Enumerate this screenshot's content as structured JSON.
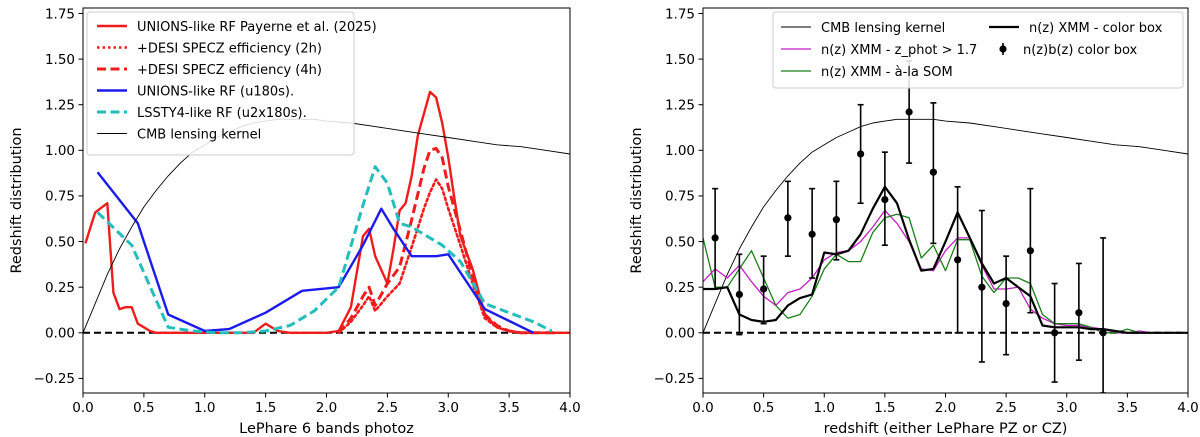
{
  "chart_data": [
    {
      "type": "line",
      "xlabel": "LePhare 6 bands photoz",
      "ylabel": "Redshift distribution",
      "xlim": [
        0.0,
        4.0
      ],
      "ylim": [
        -0.33,
        1.78
      ],
      "xticks": [
        0.0,
        0.5,
        1.0,
        1.5,
        2.0,
        2.5,
        3.0,
        3.5,
        4.0
      ],
      "xtick_labels": [
        "0.0",
        "0.5",
        "1.0",
        "1.5",
        "2.0",
        "2.5",
        "3.0",
        "3.5",
        "4.0"
      ],
      "yticks": [
        -0.25,
        0.0,
        0.25,
        0.5,
        0.75,
        1.0,
        1.25,
        1.5,
        1.75
      ],
      "ytick_labels": [
        "−0.25",
        "0.00",
        "0.25",
        "0.50",
        "0.75",
        "1.00",
        "1.25",
        "1.50",
        "1.75"
      ],
      "grid": false,
      "legend_position": "top-left",
      "zero_line": {
        "y": 0.0,
        "color": "#000000",
        "style": "dashed"
      },
      "series": [
        {
          "name": "UNIONS-like RF Payerne et al. (2025)",
          "color": "#ee1c1c",
          "style": "solid",
          "width": 2.4,
          "x": [
            0.02,
            0.1,
            0.2,
            0.25,
            0.3,
            0.35,
            0.4,
            0.45,
            0.5,
            0.55,
            0.6,
            0.7,
            0.8,
            0.9,
            1.0,
            1.1,
            1.2,
            1.3,
            1.4,
            1.5,
            1.6,
            1.7,
            1.8,
            1.9,
            2.0,
            2.1,
            2.2,
            2.3,
            2.35,
            2.4,
            2.5,
            2.55,
            2.6,
            2.65,
            2.7,
            2.75,
            2.8,
            2.85,
            2.9,
            2.95,
            3.0,
            3.05,
            3.1,
            3.2,
            3.3,
            3.4,
            3.5,
            3.6,
            3.7,
            3.8,
            3.9,
            4.0
          ],
          "y": [
            0.49,
            0.66,
            0.71,
            0.22,
            0.13,
            0.14,
            0.14,
            0.05,
            0.03,
            0.01,
            0.0,
            0.0,
            0.0,
            0.0,
            0.0,
            0.0,
            0.0,
            0.0,
            0.0,
            0.05,
            0.01,
            0.0,
            0.0,
            0.0,
            0.0,
            0.01,
            0.14,
            0.53,
            0.57,
            0.42,
            0.27,
            0.46,
            0.67,
            0.71,
            0.86,
            1.08,
            1.2,
            1.32,
            1.29,
            1.15,
            0.96,
            0.74,
            0.53,
            0.35,
            0.1,
            0.03,
            0.01,
            0.0,
            0.0,
            0.0,
            0.0,
            0.0
          ]
        },
        {
          "name": "+DESI SPECZ efficiency (2h)",
          "color": "#ee1c1c",
          "style": "dotted",
          "width": 2.6,
          "x": [
            2.1,
            2.2,
            2.3,
            2.35,
            2.4,
            2.5,
            2.6,
            2.7,
            2.8,
            2.85,
            2.9,
            2.95,
            3.0,
            3.1,
            3.2,
            3.3,
            3.4,
            3.5,
            3.6,
            3.7,
            3.8,
            3.9
          ],
          "y": [
            0.0,
            0.06,
            0.15,
            0.2,
            0.12,
            0.2,
            0.27,
            0.47,
            0.68,
            0.77,
            0.84,
            0.79,
            0.68,
            0.48,
            0.27,
            0.08,
            0.03,
            0.01,
            0.0,
            0.0,
            0.0,
            0.0
          ]
        },
        {
          "name": "+DESI SPECZ efficiency (4h)",
          "color": "#ee1c1c",
          "style": "dashed",
          "width": 3.0,
          "x": [
            2.1,
            2.2,
            2.3,
            2.35,
            2.4,
            2.5,
            2.6,
            2.7,
            2.8,
            2.85,
            2.9,
            2.95,
            3.0,
            3.1,
            3.2,
            3.3,
            3.4,
            3.5,
            3.6,
            3.7,
            3.8,
            3.9
          ],
          "y": [
            0.0,
            0.08,
            0.2,
            0.25,
            0.15,
            0.27,
            0.36,
            0.62,
            0.9,
            1.0,
            1.01,
            0.96,
            0.8,
            0.56,
            0.31,
            0.1,
            0.04,
            0.01,
            0.0,
            0.0,
            0.0,
            0.0
          ]
        },
        {
          "name": "UNIONS-like RF (u180s).",
          "color": "#1b1bee",
          "style": "solid",
          "width": 2.4,
          "x": [
            0.12,
            0.45,
            0.7,
            1.0,
            1.2,
            1.5,
            1.8,
            2.1,
            2.3,
            2.45,
            2.55,
            2.7,
            2.9,
            3.0,
            3.3,
            3.7
          ],
          "y": [
            0.88,
            0.6,
            0.1,
            0.01,
            0.02,
            0.11,
            0.23,
            0.25,
            0.48,
            0.68,
            0.57,
            0.42,
            0.42,
            0.43,
            0.13,
            0.0
          ]
        },
        {
          "name": "LSSTY4-like RF (u2x180s).",
          "color": "#23bdbd",
          "style": "dashed",
          "width": 3.0,
          "x": [
            0.12,
            0.4,
            0.7,
            0.9,
            1.1,
            1.3,
            1.5,
            1.7,
            1.9,
            2.1,
            2.3,
            2.4,
            2.5,
            2.6,
            2.7,
            2.8,
            2.95,
            3.1,
            3.3,
            3.5,
            3.7,
            3.85
          ],
          "y": [
            0.66,
            0.48,
            0.03,
            0.01,
            0.0,
            0.0,
            0.01,
            0.04,
            0.12,
            0.25,
            0.7,
            0.91,
            0.82,
            0.6,
            0.58,
            0.54,
            0.48,
            0.39,
            0.16,
            0.11,
            0.06,
            0.01
          ]
        },
        {
          "name": "CMB lensing kernel",
          "color": "#000000",
          "style": "solid",
          "width": 0.9,
          "x": [
            0.0,
            0.1,
            0.2,
            0.3,
            0.4,
            0.5,
            0.6,
            0.7,
            0.8,
            0.9,
            1.0,
            1.1,
            1.2,
            1.3,
            1.4,
            1.5,
            1.6,
            1.7,
            1.8,
            1.9,
            2.0,
            2.2,
            2.4,
            2.6,
            2.8,
            3.0,
            3.2,
            3.4,
            3.6,
            3.8,
            4.0
          ],
          "y": [
            0.0,
            0.16,
            0.32,
            0.46,
            0.58,
            0.69,
            0.78,
            0.86,
            0.93,
            0.99,
            1.03,
            1.07,
            1.1,
            1.13,
            1.15,
            1.16,
            1.17,
            1.17,
            1.17,
            1.17,
            1.16,
            1.15,
            1.13,
            1.11,
            1.09,
            1.07,
            1.05,
            1.03,
            1.02,
            1.0,
            0.98
          ]
        }
      ]
    },
    {
      "type": "line",
      "xlabel": "redshift (either LePhare PZ or CZ)",
      "ylabel": "Redshift distribution",
      "xlim": [
        0.0,
        4.0
      ],
      "ylim": [
        -0.33,
        1.78
      ],
      "xticks": [
        0.0,
        0.5,
        1.0,
        1.5,
        2.0,
        2.5,
        3.0,
        3.5,
        4.0
      ],
      "xtick_labels": [
        "0.0",
        "0.5",
        "1.0",
        "1.5",
        "2.0",
        "2.5",
        "3.0",
        "3.5",
        "4.0"
      ],
      "yticks": [
        -0.25,
        0.0,
        0.25,
        0.5,
        0.75,
        1.0,
        1.25,
        1.5,
        1.75
      ],
      "ytick_labels": [
        "−0.25",
        "0.00",
        "0.25",
        "0.50",
        "0.75",
        "1.00",
        "1.25",
        "1.50",
        "1.75"
      ],
      "grid": false,
      "legend_position": "top-right",
      "zero_line": {
        "y": 0.0,
        "color": "#000000",
        "style": "dashed"
      },
      "series": [
        {
          "name": "CMB lensing kernel",
          "color": "#000000",
          "style": "solid",
          "width": 0.9,
          "x": [
            0.0,
            0.1,
            0.2,
            0.3,
            0.4,
            0.5,
            0.6,
            0.7,
            0.8,
            0.9,
            1.0,
            1.1,
            1.2,
            1.3,
            1.4,
            1.5,
            1.6,
            1.7,
            1.8,
            1.9,
            2.0,
            2.2,
            2.4,
            2.6,
            2.8,
            3.0,
            3.2,
            3.4,
            3.6,
            3.8,
            4.0
          ],
          "y": [
            0.0,
            0.16,
            0.32,
            0.46,
            0.58,
            0.69,
            0.78,
            0.86,
            0.93,
            0.99,
            1.03,
            1.07,
            1.1,
            1.13,
            1.15,
            1.16,
            1.17,
            1.17,
            1.17,
            1.17,
            1.16,
            1.15,
            1.13,
            1.11,
            1.09,
            1.07,
            1.05,
            1.03,
            1.02,
            1.0,
            0.98
          ]
        },
        {
          "name": "n(z) XMM - z_phot > 1.7",
          "color": "#c41bc4",
          "style": "solid",
          "width": 1.3,
          "x": [
            0.0,
            0.1,
            0.2,
            0.3,
            0.4,
            0.5,
            0.6,
            0.7,
            0.8,
            0.9,
            1.0,
            1.1,
            1.2,
            1.3,
            1.4,
            1.5,
            1.6,
            1.7,
            1.8,
            1.9,
            2.0,
            2.1,
            2.2,
            2.3,
            2.4,
            2.5,
            2.6,
            2.7,
            2.8,
            2.9,
            3.0,
            3.1,
            3.2,
            3.3,
            3.4,
            3.5,
            3.6,
            3.7,
            3.8,
            3.9,
            4.0
          ],
          "y": [
            0.28,
            0.35,
            0.3,
            0.37,
            0.28,
            0.2,
            0.15,
            0.22,
            0.24,
            0.3,
            0.4,
            0.44,
            0.45,
            0.5,
            0.58,
            0.67,
            0.6,
            0.5,
            0.35,
            0.34,
            0.45,
            0.52,
            0.52,
            0.37,
            0.24,
            0.24,
            0.25,
            0.13,
            0.08,
            0.05,
            0.04,
            0.04,
            0.03,
            0.02,
            0.0,
            0.0,
            0.01,
            0.0,
            0.0,
            0.0,
            0.0
          ]
        },
        {
          "name": "n(z) XMM - à-la SOM",
          "color": "#1a7f1a",
          "style": "solid",
          "width": 1.3,
          "x": [
            0.0,
            0.1,
            0.2,
            0.3,
            0.4,
            0.5,
            0.6,
            0.7,
            0.8,
            0.9,
            1.0,
            1.1,
            1.2,
            1.3,
            1.4,
            1.5,
            1.6,
            1.7,
            1.8,
            1.9,
            2.0,
            2.1,
            2.2,
            2.3,
            2.4,
            2.5,
            2.6,
            2.7,
            2.8,
            2.9,
            3.0,
            3.1,
            3.2,
            3.3,
            3.4,
            3.5,
            3.6,
            3.7,
            3.8,
            3.9,
            4.0
          ],
          "y": [
            0.52,
            0.25,
            0.25,
            0.35,
            0.45,
            0.3,
            0.15,
            0.08,
            0.1,
            0.2,
            0.35,
            0.43,
            0.39,
            0.39,
            0.55,
            0.63,
            0.65,
            0.63,
            0.41,
            0.48,
            0.34,
            0.51,
            0.51,
            0.31,
            0.22,
            0.3,
            0.3,
            0.27,
            0.1,
            0.05,
            0.05,
            0.05,
            0.03,
            0.0,
            0.0,
            0.02,
            0.0,
            0.0,
            0.0,
            0.0,
            0.0
          ]
        },
        {
          "name": "n(z) XMM - color box",
          "color": "#000000",
          "style": "solid",
          "width": 2.2,
          "x": [
            0.0,
            0.1,
            0.2,
            0.3,
            0.4,
            0.5,
            0.6,
            0.7,
            0.8,
            0.9,
            1.0,
            1.1,
            1.2,
            1.3,
            1.4,
            1.5,
            1.6,
            1.7,
            1.8,
            1.9,
            2.0,
            2.1,
            2.2,
            2.3,
            2.4,
            2.5,
            2.6,
            2.7,
            2.8,
            2.9,
            3.0,
            3.1,
            3.2,
            3.3,
            3.4,
            3.5,
            3.6,
            3.7,
            3.8,
            3.9,
            4.0
          ],
          "y": [
            0.24,
            0.24,
            0.25,
            0.1,
            0.07,
            0.06,
            0.07,
            0.15,
            0.19,
            0.21,
            0.44,
            0.43,
            0.45,
            0.54,
            0.68,
            0.8,
            0.71,
            0.51,
            0.34,
            0.35,
            0.5,
            0.66,
            0.52,
            0.38,
            0.27,
            0.3,
            0.25,
            0.2,
            0.04,
            0.03,
            0.03,
            0.03,
            0.02,
            0.02,
            0.01,
            0.0,
            0.0,
            0.0,
            0.0,
            0.0,
            0.0
          ]
        }
      ],
      "errorbar_series": {
        "name": "n(z)b(z) color box",
        "color": "#000000",
        "points": [
          {
            "x": 0.1,
            "y": 0.52,
            "lo": 0.24,
            "hi": 0.79
          },
          {
            "x": 0.3,
            "y": 0.21,
            "lo": -0.01,
            "hi": 0.43
          },
          {
            "x": 0.5,
            "y": 0.24,
            "lo": 0.05,
            "hi": 0.42
          },
          {
            "x": 0.7,
            "y": 0.63,
            "lo": 0.42,
            "hi": 0.83
          },
          {
            "x": 0.9,
            "y": 0.54,
            "lo": 0.3,
            "hi": 0.79
          },
          {
            "x": 1.1,
            "y": 0.62,
            "lo": 0.4,
            "hi": 0.83
          },
          {
            "x": 1.3,
            "y": 0.98,
            "lo": 0.71,
            "hi": 1.25
          },
          {
            "x": 1.5,
            "y": 0.73,
            "lo": 0.48,
            "hi": 0.99
          },
          {
            "x": 1.7,
            "y": 1.21,
            "lo": 0.93,
            "hi": 1.49
          },
          {
            "x": 1.9,
            "y": 0.88,
            "lo": 0.49,
            "hi": 1.26
          },
          {
            "x": 2.1,
            "y": 0.4,
            "lo": 0.0,
            "hi": 0.8
          },
          {
            "x": 2.3,
            "y": 0.25,
            "lo": -0.16,
            "hi": 0.67
          },
          {
            "x": 2.5,
            "y": 0.16,
            "lo": -0.12,
            "hi": 0.42
          },
          {
            "x": 2.7,
            "y": 0.45,
            "lo": 0.11,
            "hi": 0.79
          },
          {
            "x": 2.9,
            "y": 0.0,
            "lo": -0.27,
            "hi": 0.27
          },
          {
            "x": 3.1,
            "y": 0.11,
            "lo": -0.15,
            "hi": 0.38
          },
          {
            "x": 3.3,
            "y": 0.0,
            "lo": -0.33,
            "hi": 0.52
          }
        ]
      }
    }
  ]
}
